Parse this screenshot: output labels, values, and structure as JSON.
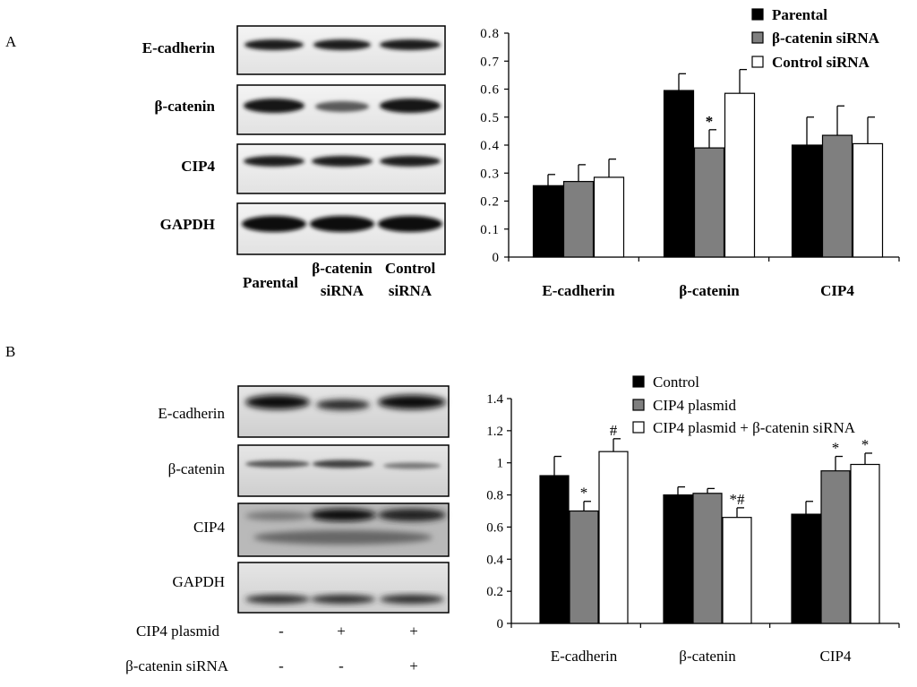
{
  "panels": [
    {
      "letter": "A",
      "blot": {
        "rows": [
          "E-cadherin",
          "β-catenin",
          "CIP4",
          "GAPDH"
        ],
        "lanes": [
          [
            "Parental"
          ],
          [
            "β-catenin",
            "siRNA"
          ],
          [
            "Control",
            "siRNA"
          ]
        ]
      }
    },
    {
      "letter": "B",
      "blot": {
        "rows": [
          "E-cadherin",
          "β-catenin",
          "CIP4",
          "GAPDH"
        ],
        "treatments": [
          {
            "label": "CIP4 plasmid",
            "signs": [
              "-",
              "+",
              "+"
            ]
          },
          {
            "label": "β-catenin siRNA",
            "signs": [
              "-",
              "-",
              "+"
            ]
          }
        ]
      }
    }
  ],
  "chart_data": [
    {
      "type": "bar",
      "categories": [
        "E-cadherin",
        "β-catenin",
        "CIP4"
      ],
      "series": [
        {
          "name": "Parental",
          "color": "#000000",
          "values": [
            0.255,
            0.595,
            0.4
          ],
          "errors": [
            0.04,
            0.06,
            0.1
          ]
        },
        {
          "name": "β-catenin siRNA",
          "color": "#7f7f7f",
          "values": [
            0.27,
            0.39,
            0.435
          ],
          "errors": [
            0.06,
            0.065,
            0.105
          ]
        },
        {
          "name": "Control siRNA",
          "color": "#ffffff",
          "values": [
            0.285,
            0.585,
            0.405
          ],
          "errors": [
            0.065,
            0.085,
            0.095
          ]
        }
      ],
      "annotations": [
        {
          "category": 1,
          "series": 1,
          "text": "*"
        }
      ],
      "ylim": [
        0,
        0.8
      ],
      "yticks": [
        "0",
        "0.1",
        "0.2",
        "0.3",
        "0.4",
        "0.5",
        "0.6",
        "0.7",
        "0.8"
      ],
      "legend": "top-right"
    },
    {
      "type": "bar",
      "categories": [
        "E-cadherin",
        "β-catenin",
        "CIP4"
      ],
      "series": [
        {
          "name": "Control",
          "color": "#000000",
          "values": [
            0.92,
            0.8,
            0.68
          ],
          "errors": [
            0.12,
            0.05,
            0.08
          ]
        },
        {
          "name": "CIP4 plasmid",
          "color": "#7f7f7f",
          "values": [
            0.7,
            0.81,
            0.95
          ],
          "errors": [
            0.06,
            0.03,
            0.09
          ]
        },
        {
          "name": "CIP4 plasmid + β-catenin siRNA",
          "color": "#ffffff",
          "values": [
            1.07,
            0.66,
            0.99
          ],
          "errors": [
            0.08,
            0.06,
            0.07
          ]
        }
      ],
      "annotations": [
        {
          "category": 0,
          "series": 1,
          "text": "*"
        },
        {
          "category": 0,
          "series": 2,
          "text": "#"
        },
        {
          "category": 1,
          "series": 2,
          "text": "*#"
        },
        {
          "category": 2,
          "series": 1,
          "text": "*"
        },
        {
          "category": 2,
          "series": 2,
          "text": "*"
        }
      ],
      "ylim": [
        0,
        1.4
      ],
      "yticks": [
        "0",
        "0.2",
        "0.4",
        "0.6",
        "0.8",
        "1",
        "1.2",
        "1.4"
      ],
      "legend": "top-right"
    }
  ]
}
